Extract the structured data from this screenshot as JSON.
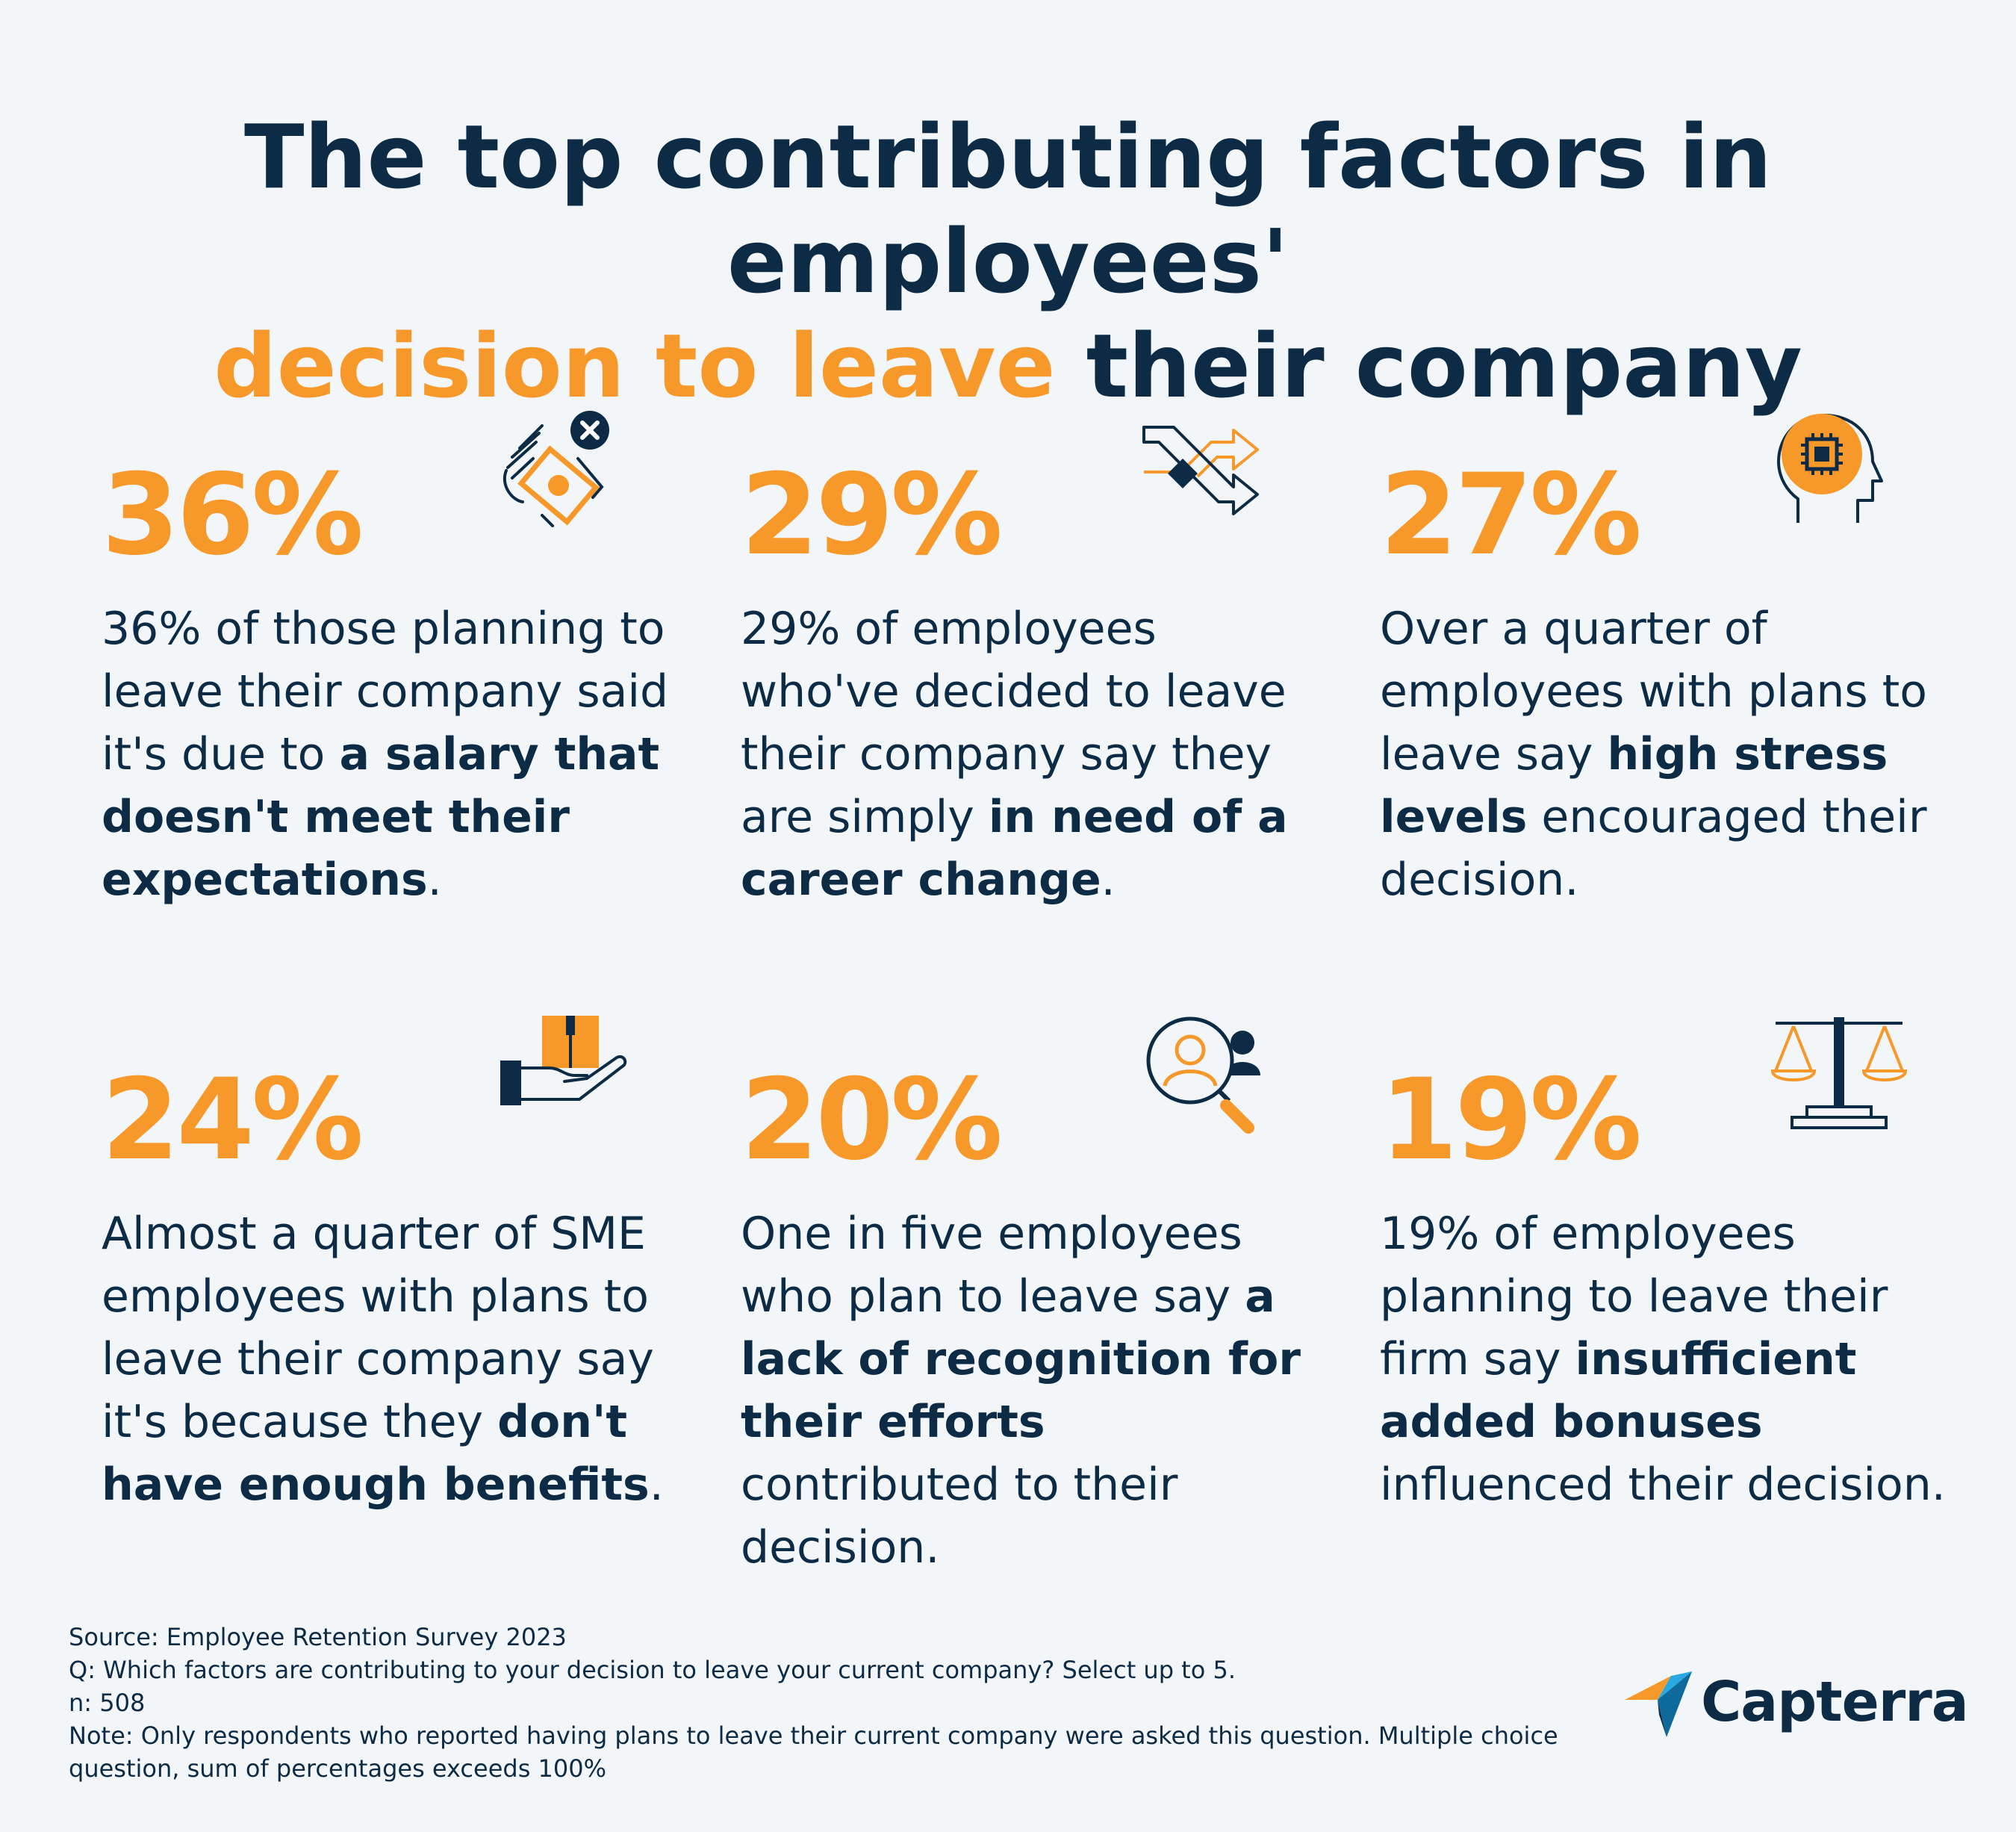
{
  "title": {
    "line1": "The top contributing factors in employees'",
    "line2_accent": "decision to leave",
    "line2_rest": " their company"
  },
  "colors": {
    "accent": "#f7982b",
    "dark": "#0d2b45",
    "background": "#f2f6f8"
  },
  "stats": [
    {
      "percent": "36%",
      "icon": "money-hand-cancel-icon",
      "desc_before": "36% of those planning to leave their company said it's due to ",
      "desc_bold": "a salary that doesn't meet their expectations",
      "desc_after": "."
    },
    {
      "percent": "29%",
      "icon": "shuffle-arrows-icon",
      "desc_before": "29% of employees who've decided to leave their company say they are simply ",
      "desc_bold": "in need of a career change",
      "desc_after": "."
    },
    {
      "percent": "27%",
      "icon": "head-chip-icon",
      "desc_before": "Over a quarter of employees with plans to leave say ",
      "desc_bold": "high stress levels",
      "desc_after": " encouraged their decision."
    },
    {
      "percent": "24%",
      "icon": "hand-box-icon",
      "desc_before": "Almost a quarter of SME employees with plans to leave their company say it's because they ",
      "desc_bold": "don't have enough benefits",
      "desc_after": "."
    },
    {
      "percent": "20%",
      "icon": "magnifier-person-icon",
      "desc_before": "One in five employees who plan to leave say ",
      "desc_bold": "a lack of recognition for their efforts",
      "desc_after": " contributed to their decision."
    },
    {
      "percent": "19%",
      "icon": "scales-icon",
      "desc_before": "19% of employees planning to leave their firm say ",
      "desc_bold": "insufficient added bonuses",
      "desc_after": " influenced their decision."
    }
  ],
  "footer": {
    "source": "Source: Employee Retention Survey 2023",
    "question": "Q: Which factors are contributing to your decision to leave your current company? Select up to 5.",
    "n": "n: 508",
    "note": "Note: Only respondents who reported having plans to leave their current company were asked this question. Multiple choice question, sum of percentages exceeds 100%"
  },
  "logo": {
    "text": "Capterra"
  }
}
